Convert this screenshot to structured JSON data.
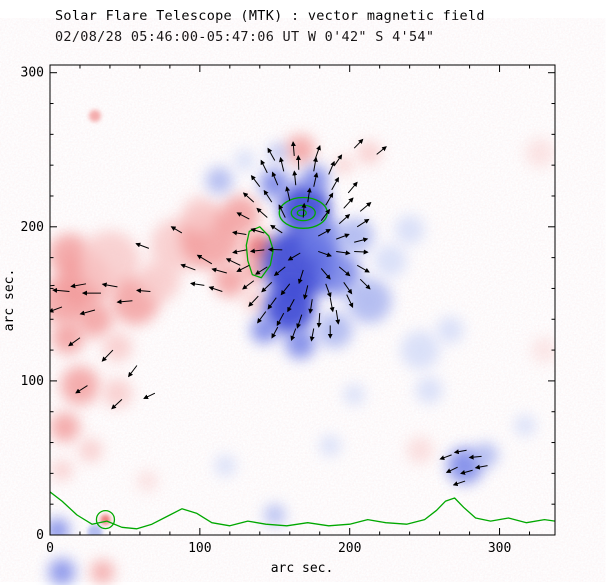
{
  "chart_data": {
    "type": "heatmap",
    "title": "Solar Flare Telescope (MTK) : vector magnetic field",
    "subtitle": "02/08/28  05:46:00-05:47:06 UT     W 0'42\"  S 4'54\"",
    "xlabel": "arc sec.",
    "ylabel": "arc sec.",
    "xlim": [
      0,
      337
    ],
    "ylim": [
      0,
      305
    ],
    "xticks": [
      0,
      100,
      200,
      300
    ],
    "yticks": [
      0,
      100,
      200,
      300
    ],
    "minor_tick_step": 20,
    "grid": false,
    "legend": "none",
    "palette": {
      "p1": "#e86060",
      "p2": "#f29a9a",
      "p3": "#f8c8c8",
      "n1": "#3a46d4",
      "n2": "#6d7ce6",
      "n3": "#a4b0ef",
      "n4": "#d2daf8",
      "contour": "#00a800",
      "vector": "#000000",
      "axis": "#000000",
      "background": "#ffffff"
    },
    "positive_regions": [
      {
        "x": 10,
        "y": 152,
        "r": 16,
        "c": "p2"
      },
      {
        "x": 23,
        "y": 165,
        "r": 18,
        "c": "p2"
      },
      {
        "x": 13,
        "y": 182,
        "r": 14,
        "c": "p2"
      },
      {
        "x": 40,
        "y": 178,
        "r": 20,
        "c": "p3"
      },
      {
        "x": 57,
        "y": 152,
        "r": 16,
        "c": "p2"
      },
      {
        "x": 73,
        "y": 165,
        "r": 14,
        "c": "p3"
      },
      {
        "x": 85,
        "y": 188,
        "r": 18,
        "c": "p3"
      },
      {
        "x": 107,
        "y": 192,
        "r": 20,
        "c": "p2"
      },
      {
        "x": 100,
        "y": 208,
        "r": 12,
        "c": "p3"
      },
      {
        "x": 127,
        "y": 208,
        "r": 13,
        "c": "p2"
      },
      {
        "x": 140,
        "y": 186,
        "r": 10,
        "c": "p1"
      },
      {
        "x": 137,
        "y": 172,
        "r": 9,
        "c": "p2"
      },
      {
        "x": 120,
        "y": 165,
        "r": 11,
        "c": "p2"
      },
      {
        "x": 137,
        "y": 152,
        "r": 8,
        "c": "p3"
      },
      {
        "x": 30,
        "y": 140,
        "r": 12,
        "c": "p2"
      },
      {
        "x": 12,
        "y": 128,
        "r": 11,
        "c": "p2"
      },
      {
        "x": 45,
        "y": 122,
        "r": 10,
        "c": "p3"
      },
      {
        "x": 20,
        "y": 97,
        "r": 13,
        "c": "p2"
      },
      {
        "x": 45,
        "y": 92,
        "r": 10,
        "c": "p3"
      },
      {
        "x": 10,
        "y": 70,
        "r": 10,
        "c": "p2"
      },
      {
        "x": 27,
        "y": 55,
        "r": 8,
        "c": "p3"
      },
      {
        "x": 8,
        "y": 42,
        "r": 7,
        "c": "p3"
      },
      {
        "x": 167,
        "y": 250,
        "r": 10,
        "c": "p2"
      },
      {
        "x": 213,
        "y": 248,
        "r": 8,
        "c": "p3"
      },
      {
        "x": 196,
        "y": 240,
        "r": 6,
        "c": "p3"
      },
      {
        "x": 30,
        "y": 272,
        "r": 4,
        "c": "p2"
      },
      {
        "x": 37,
        "y": 10,
        "r": 3.5,
        "c": "p1"
      },
      {
        "x": 247,
        "y": 55,
        "r": 9,
        "c": "p3",
        "o": 0.55
      },
      {
        "x": 327,
        "y": 248,
        "r": 10,
        "c": "p3",
        "o": 0.45
      },
      {
        "x": 65,
        "y": 35,
        "r": 7,
        "c": "p3",
        "o": 0.5
      },
      {
        "x": 330,
        "y": 120,
        "r": 9,
        "c": "p3",
        "o": 0.4
      }
    ],
    "negative_regions": [
      {
        "x": 170,
        "y": 212,
        "r": 17,
        "c": "n1",
        "o": 0.9
      },
      {
        "x": 166,
        "y": 176,
        "r": 24,
        "c": "n1",
        "o": 0.9
      },
      {
        "x": 160,
        "y": 147,
        "r": 17,
        "c": "n1",
        "o": 0.9
      },
      {
        "x": 181,
        "y": 192,
        "r": 15,
        "c": "n2"
      },
      {
        "x": 192,
        "y": 170,
        "r": 15,
        "c": "n2"
      },
      {
        "x": 204,
        "y": 194,
        "r": 12,
        "c": "n3"
      },
      {
        "x": 213,
        "y": 152,
        "r": 15,
        "c": "n3"
      },
      {
        "x": 190,
        "y": 133,
        "r": 12,
        "c": "n3"
      },
      {
        "x": 167,
        "y": 124,
        "r": 10,
        "c": "n2"
      },
      {
        "x": 143,
        "y": 133,
        "r": 9,
        "c": "n2"
      },
      {
        "x": 150,
        "y": 228,
        "r": 10,
        "c": "n2"
      },
      {
        "x": 177,
        "y": 231,
        "r": 9,
        "c": "n2"
      },
      {
        "x": 152,
        "y": 248,
        "r": 6,
        "c": "n3"
      },
      {
        "x": 113,
        "y": 230,
        "r": 9,
        "c": "n3"
      },
      {
        "x": 130,
        "y": 243,
        "r": 7,
        "c": "n4"
      },
      {
        "x": 227,
        "y": 178,
        "r": 11,
        "c": "n4"
      },
      {
        "x": 240,
        "y": 198,
        "r": 10,
        "c": "n4"
      },
      {
        "x": 247,
        "y": 120,
        "r": 13,
        "c": "n4"
      },
      {
        "x": 267,
        "y": 133,
        "r": 9,
        "c": "n4"
      },
      {
        "x": 253,
        "y": 94,
        "r": 9,
        "c": "n4"
      },
      {
        "x": 203,
        "y": 91,
        "r": 7,
        "c": "n4"
      },
      {
        "x": 277,
        "y": 45,
        "r": 12,
        "c": "n2"
      },
      {
        "x": 291,
        "y": 52,
        "r": 8,
        "c": "n3"
      },
      {
        "x": 317,
        "y": 71,
        "r": 7,
        "c": "n4"
      },
      {
        "x": 187,
        "y": 58,
        "r": 7,
        "c": "n4"
      },
      {
        "x": 150,
        "y": 13,
        "r": 7,
        "c": "n3"
      },
      {
        "x": 117,
        "y": 45,
        "r": 7,
        "c": "n4"
      },
      {
        "x": 5,
        "y": 3,
        "r": 8,
        "c": "n2"
      },
      {
        "x": 30,
        "y": 2,
        "r": 5,
        "c": "n3"
      }
    ],
    "margin_regions": [
      {
        "x": 8,
        "y": -24,
        "r": 9,
        "c": "n2"
      },
      {
        "x": 35,
        "y": -24,
        "r": 8,
        "c": "p2"
      }
    ],
    "contours": {
      "rings": [
        {
          "cx": 169,
          "cy": 209,
          "rx": 16,
          "ry": 10
        },
        {
          "cx": 169,
          "cy": 209,
          "rx": 8,
          "ry": 5
        },
        {
          "cx": 168,
          "cy": 209,
          "rx": 3,
          "ry": 2
        }
      ],
      "closed_region": [
        [
          133,
          197
        ],
        [
          140,
          200
        ],
        [
          146,
          194
        ],
        [
          149,
          185
        ],
        [
          147,
          175
        ],
        [
          141,
          167
        ],
        [
          135,
          169
        ],
        [
          132,
          178
        ],
        [
          131,
          188
        ]
      ],
      "small_ring": {
        "cx": 37,
        "cy": 10,
        "r": 6
      },
      "bottom_line": [
        [
          0,
          28
        ],
        [
          8,
          22
        ],
        [
          18,
          13
        ],
        [
          28,
          7
        ],
        [
          38,
          9
        ],
        [
          48,
          5
        ],
        [
          58,
          4
        ],
        [
          68,
          7
        ],
        [
          78,
          12
        ],
        [
          88,
          17
        ],
        [
          98,
          14
        ],
        [
          108,
          8
        ],
        [
          120,
          6
        ],
        [
          132,
          9
        ],
        [
          144,
          7
        ],
        [
          158,
          6
        ],
        [
          172,
          8
        ],
        [
          186,
          6
        ],
        [
          200,
          7
        ],
        [
          212,
          10
        ],
        [
          224,
          8
        ],
        [
          238,
          7
        ],
        [
          250,
          10
        ],
        [
          258,
          16
        ],
        [
          264,
          22
        ],
        [
          270,
          24
        ],
        [
          276,
          18
        ],
        [
          284,
          11
        ],
        [
          294,
          9
        ],
        [
          306,
          11
        ],
        [
          318,
          8
        ],
        [
          330,
          10
        ],
        [
          337,
          9
        ]
      ]
    },
    "vectors": [
      [
        3,
        162,
        185,
        10
      ],
      [
        13,
        158,
        175,
        11
      ],
      [
        24,
        163,
        190,
        10
      ],
      [
        34,
        157,
        180,
        12
      ],
      [
        45,
        161,
        170,
        10
      ],
      [
        8,
        148,
        200,
        9
      ],
      [
        30,
        146,
        195,
        10
      ],
      [
        55,
        152,
        185,
        10
      ],
      [
        67,
        158,
        175,
        9
      ],
      [
        20,
        128,
        215,
        9
      ],
      [
        42,
        120,
        225,
        10
      ],
      [
        58,
        110,
        232,
        9
      ],
      [
        25,
        97,
        212,
        9
      ],
      [
        48,
        88,
        222,
        9
      ],
      [
        70,
        92,
        205,
        8
      ],
      [
        66,
        186,
        160,
        9
      ],
      [
        88,
        196,
        150,
        8
      ],
      [
        97,
        172,
        160,
        10
      ],
      [
        108,
        176,
        150,
        11
      ],
      [
        118,
        170,
        165,
        10
      ],
      [
        127,
        175,
        155,
        10
      ],
      [
        103,
        162,
        172,
        9
      ],
      [
        115,
        158,
        162,
        9
      ],
      [
        150,
        243,
        120,
        9
      ],
      [
        163,
        246,
        95,
        9
      ],
      [
        177,
        244,
        70,
        9
      ],
      [
        190,
        240,
        55,
        8
      ],
      [
        203,
        251,
        45,
        8
      ],
      [
        218,
        247,
        38,
        8
      ],
      [
        145,
        235,
        117,
        9
      ],
      [
        156,
        236,
        104,
        9
      ],
      [
        166,
        237,
        92,
        9
      ],
      [
        176,
        236,
        80,
        9
      ],
      [
        186,
        234,
        66,
        9
      ],
      [
        140,
        226,
        128,
        9
      ],
      [
        152,
        227,
        113,
        9
      ],
      [
        164,
        227,
        96,
        9
      ],
      [
        176,
        226,
        77,
        9
      ],
      [
        188,
        224,
        60,
        9
      ],
      [
        199,
        222,
        49,
        9
      ],
      [
        136,
        216,
        139,
        9
      ],
      [
        148,
        216,
        124,
        9
      ],
      [
        160,
        217,
        103,
        9
      ],
      [
        172,
        216,
        81,
        9
      ],
      [
        184,
        214,
        59,
        9
      ],
      [
        196,
        212,
        47,
        9
      ],
      [
        207,
        210,
        39,
        9
      ],
      [
        133,
        205,
        153,
        9
      ],
      [
        145,
        206,
        139,
        9
      ],
      [
        157,
        206,
        117,
        9
      ],
      [
        169,
        206,
        86,
        9
      ],
      [
        181,
        204,
        52,
        9
      ],
      [
        193,
        202,
        41,
        9
      ],
      [
        205,
        200,
        32,
        9
      ],
      [
        131,
        195,
        171,
        9
      ],
      [
        143,
        196,
        164,
        9
      ],
      [
        155,
        196,
        147,
        9
      ],
      [
        179,
        194,
        28,
        9
      ],
      [
        191,
        192,
        20,
        9
      ],
      [
        203,
        190,
        14,
        9
      ],
      [
        131,
        185,
        191,
        9
      ],
      [
        143,
        185,
        186,
        9
      ],
      [
        155,
        185,
        178,
        9
      ],
      [
        167,
        183,
        210,
        9
      ],
      [
        179,
        184,
        341,
        9
      ],
      [
        191,
        184,
        352,
        9
      ],
      [
        203,
        184,
        357,
        9
      ],
      [
        133,
        175,
        206,
        9
      ],
      [
        145,
        174,
        212,
        9
      ],
      [
        157,
        174,
        218,
        9
      ],
      [
        169,
        172,
        252,
        9
      ],
      [
        181,
        173,
        311,
        9
      ],
      [
        193,
        174,
        321,
        9
      ],
      [
        205,
        175,
        331,
        9
      ],
      [
        136,
        165,
        216,
        9
      ],
      [
        148,
        164,
        223,
        9
      ],
      [
        160,
        163,
        231,
        9
      ],
      [
        172,
        162,
        256,
        9
      ],
      [
        184,
        163,
        291,
        9
      ],
      [
        196,
        164,
        306,
        9
      ],
      [
        207,
        166,
        316,
        9
      ],
      [
        139,
        155,
        226,
        9
      ],
      [
        151,
        154,
        233,
        9
      ],
      [
        163,
        153,
        241,
        9
      ],
      [
        175,
        153,
        261,
        9
      ],
      [
        187,
        154,
        281,
        9
      ],
      [
        198,
        156,
        296,
        9
      ],
      [
        144,
        145,
        233,
        9
      ],
      [
        156,
        144,
        241,
        9
      ],
      [
        168,
        143,
        251,
        9
      ],
      [
        180,
        144,
        266,
        9
      ],
      [
        191,
        146,
        279,
        9
      ],
      [
        152,
        135,
        241,
        8
      ],
      [
        164,
        134,
        249,
        8
      ],
      [
        176,
        134,
        259,
        8
      ],
      [
        187,
        136,
        270,
        8
      ],
      [
        268,
        52,
        200,
        8
      ],
      [
        278,
        55,
        190,
        8
      ],
      [
        288,
        51,
        185,
        8
      ],
      [
        272,
        44,
        205,
        8
      ],
      [
        282,
        42,
        195,
        8
      ],
      [
        292,
        45,
        190,
        8
      ],
      [
        277,
        35,
        198,
        8
      ]
    ]
  }
}
